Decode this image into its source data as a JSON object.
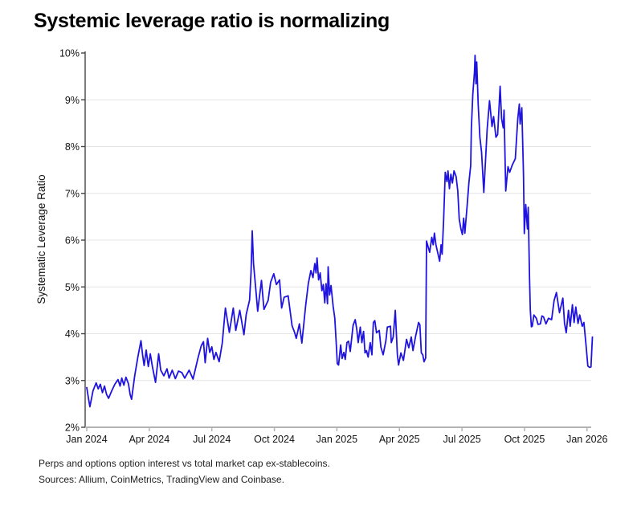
{
  "page": {
    "title": "Systemic leverage ratio is normalizing",
    "footnotes": [
      "Perps and options option interest vs total market cap ex-stablecoins.",
      "Sources: Allium, CoinMetrics, TradingView and Coinbase."
    ]
  },
  "style": {
    "line_color": "#1f13e0",
    "grid_color": "#e4e4e4",
    "y_axis_color": "#444444",
    "x_axis_color": "#b3b3b3",
    "text_color": "#111111"
  },
  "chart_data": {
    "type": "line",
    "title": "Systemic leverage ratio is normalizing",
    "xlabel": "",
    "ylabel": "Systematic Leverage Ratio",
    "legend_position": "none",
    "grid": "horizontal",
    "ylim": [
      2,
      10
    ],
    "xlim_months_from_jan2024": [
      0,
      24.3
    ],
    "y_tick_values": [
      2,
      3,
      4,
      5,
      6,
      7,
      8,
      9,
      10
    ],
    "y_tick_labels": [
      "2%",
      "3%",
      "4%",
      "5%",
      "6%",
      "7%",
      "8%",
      "9%",
      "10%"
    ],
    "y_gridline_values": [
      3,
      4,
      5,
      6,
      7,
      8,
      9
    ],
    "x_tick_months": [
      0,
      3,
      6,
      9,
      12,
      15,
      18,
      21,
      24
    ],
    "x_tick_labels": [
      "Jan 2024",
      "Apr 2024",
      "Jul 2024",
      "Oct 2024",
      "Jan 2025",
      "Apr 2025",
      "Jul 2025",
      "Oct 2025",
      "Jan 2026"
    ],
    "series": [
      {
        "name": "Systematic Leverage Ratio",
        "unit": "%",
        "points_month_value": [
          [
            0,
            2.85
          ],
          [
            0.08,
            2.62
          ],
          [
            0.15,
            2.44
          ],
          [
            0.3,
            2.78
          ],
          [
            0.45,
            2.95
          ],
          [
            0.55,
            2.82
          ],
          [
            0.65,
            2.92
          ],
          [
            0.75,
            2.74
          ],
          [
            0.85,
            2.88
          ],
          [
            0.95,
            2.7
          ],
          [
            1.05,
            2.62
          ],
          [
            1.2,
            2.78
          ],
          [
            1.35,
            2.92
          ],
          [
            1.5,
            3.02
          ],
          [
            1.6,
            2.88
          ],
          [
            1.68,
            3.05
          ],
          [
            1.78,
            2.9
          ],
          [
            1.88,
            3.07
          ],
          [
            2,
            2.93
          ],
          [
            2.08,
            2.7
          ],
          [
            2.15,
            2.6
          ],
          [
            2.3,
            3.1
          ],
          [
            2.45,
            3.5
          ],
          [
            2.6,
            3.85
          ],
          [
            2.68,
            3.55
          ],
          [
            2.75,
            3.32
          ],
          [
            2.85,
            3.65
          ],
          [
            2.95,
            3.3
          ],
          [
            3.05,
            3.57
          ],
          [
            3.15,
            3.3
          ],
          [
            3.3,
            2.96
          ],
          [
            3.45,
            3.57
          ],
          [
            3.55,
            3.22
          ],
          [
            3.7,
            3.1
          ],
          [
            3.85,
            3.25
          ],
          [
            3.95,
            3.05
          ],
          [
            4.1,
            3.22
          ],
          [
            4.25,
            3.04
          ],
          [
            4.4,
            3.2
          ],
          [
            4.56,
            3.17
          ],
          [
            4.7,
            3.05
          ],
          [
            4.91,
            3.22
          ],
          [
            5.1,
            3.03
          ],
          [
            5.33,
            3.47
          ],
          [
            5.49,
            3.74
          ],
          [
            5.6,
            3.83
          ],
          [
            5.68,
            3.38
          ],
          [
            5.8,
            3.9
          ],
          [
            5.9,
            3.6
          ],
          [
            6,
            3.72
          ],
          [
            6.1,
            3.45
          ],
          [
            6.2,
            3.6
          ],
          [
            6.35,
            3.4
          ],
          [
            6.5,
            3.8
          ],
          [
            6.65,
            4.55
          ],
          [
            6.84,
            4.03
          ],
          [
            7.03,
            4.55
          ],
          [
            7.15,
            4.07
          ],
          [
            7.34,
            4.5
          ],
          [
            7.54,
            3.98
          ],
          [
            7.65,
            4.41
          ],
          [
            7.81,
            4.72
          ],
          [
            7.88,
            5.3
          ],
          [
            7.94,
            6.2
          ],
          [
            8,
            5.5
          ],
          [
            8.1,
            5
          ],
          [
            8.2,
            4.48
          ],
          [
            8.38,
            5.14
          ],
          [
            8.5,
            4.52
          ],
          [
            8.7,
            4.71
          ],
          [
            8.82,
            5.1
          ],
          [
            8.97,
            5.28
          ],
          [
            9.1,
            5.05
          ],
          [
            9.25,
            5.15
          ],
          [
            9.35,
            4.55
          ],
          [
            9.47,
            4.78
          ],
          [
            9.66,
            4.81
          ],
          [
            9.85,
            4.17
          ],
          [
            9.97,
            4.03
          ],
          [
            10.05,
            3.9
          ],
          [
            10.2,
            4.21
          ],
          [
            10.32,
            3.8
          ],
          [
            10.5,
            4.6
          ],
          [
            10.63,
            5.07
          ],
          [
            10.75,
            5.35
          ],
          [
            10.85,
            5.2
          ],
          [
            10.94,
            5.5
          ],
          [
            11,
            5.3
          ],
          [
            11.05,
            5.62
          ],
          [
            11.12,
            5.15
          ],
          [
            11.2,
            5.3
          ],
          [
            11.28,
            4.92
          ],
          [
            11.35,
            5.05
          ],
          [
            11.42,
            4.66
          ],
          [
            11.48,
            5.07
          ],
          [
            11.55,
            4.64
          ],
          [
            11.58,
            5.43
          ],
          [
            11.65,
            4.83
          ],
          [
            11.72,
            5.03
          ],
          [
            11.82,
            4.59
          ],
          [
            11.9,
            4.33
          ],
          [
            11.98,
            3.7
          ],
          [
            12.02,
            3.36
          ],
          [
            12.08,
            3.33
          ],
          [
            12.18,
            3.76
          ],
          [
            12.25,
            3.47
          ],
          [
            12.33,
            3.6
          ],
          [
            12.4,
            3.45
          ],
          [
            12.48,
            3.81
          ],
          [
            12.56,
            3.84
          ],
          [
            12.64,
            3.62
          ],
          [
            12.78,
            4.18
          ],
          [
            12.88,
            4.3
          ],
          [
            12.95,
            4.1
          ],
          [
            13.02,
            3.81
          ],
          [
            13.12,
            4.14
          ],
          [
            13.2,
            3.81
          ],
          [
            13.28,
            4.05
          ],
          [
            13.35,
            3.59
          ],
          [
            13.42,
            3.64
          ],
          [
            13.5,
            3.5
          ],
          [
            13.6,
            3.81
          ],
          [
            13.68,
            3.55
          ],
          [
            13.75,
            4.24
          ],
          [
            13.82,
            4.28
          ],
          [
            13.9,
            4.02
          ],
          [
            14.03,
            4.07
          ],
          [
            14.11,
            3.71
          ],
          [
            14.22,
            3.55
          ],
          [
            14.35,
            3.85
          ],
          [
            14.42,
            4.14
          ],
          [
            14.57,
            4.16
          ],
          [
            14.61,
            3.81
          ],
          [
            14.7,
            3.93
          ],
          [
            14.8,
            4.5
          ],
          [
            14.9,
            3.55
          ],
          [
            14.96,
            3.33
          ],
          [
            15.07,
            3.59
          ],
          [
            15.19,
            3.43
          ],
          [
            15.34,
            3.88
          ],
          [
            15.45,
            3.7
          ],
          [
            15.57,
            3.93
          ],
          [
            15.65,
            3.64
          ],
          [
            15.77,
            3.93
          ],
          [
            15.92,
            4.24
          ],
          [
            15.98,
            4.19
          ],
          [
            16.05,
            3.59
          ],
          [
            16.12,
            3.55
          ],
          [
            16.18,
            3.4
          ],
          [
            16.26,
            3.48
          ],
          [
            16.3,
            5.98
          ],
          [
            16.45,
            5.74
          ],
          [
            16.55,
            6.06
          ],
          [
            16.62,
            5.9
          ],
          [
            16.68,
            6.15
          ],
          [
            16.75,
            5.9
          ],
          [
            16.93,
            5.55
          ],
          [
            17,
            5.9
          ],
          [
            17.05,
            5.7
          ],
          [
            17.12,
            6.45
          ],
          [
            17.2,
            7.45
          ],
          [
            17.28,
            7.25
          ],
          [
            17.33,
            7.48
          ],
          [
            17.4,
            7.1
          ],
          [
            17.47,
            7.41
          ],
          [
            17.54,
            7.22
          ],
          [
            17.62,
            7.48
          ],
          [
            17.72,
            7.36
          ],
          [
            17.8,
            7.05
          ],
          [
            17.87,
            6.45
          ],
          [
            17.95,
            6.24
          ],
          [
            18.02,
            6.12
          ],
          [
            18.08,
            6.47
          ],
          [
            18.14,
            6.15
          ],
          [
            18.25,
            6.75
          ],
          [
            18.33,
            7.22
          ],
          [
            18.42,
            7.6
          ],
          [
            18.45,
            8.4
          ],
          [
            18.52,
            9.12
          ],
          [
            18.6,
            9.6
          ],
          [
            18.63,
            9.95
          ],
          [
            18.67,
            9.34
          ],
          [
            18.71,
            9.81
          ],
          [
            18.78,
            8.9
          ],
          [
            18.86,
            8.2
          ],
          [
            18.94,
            7.88
          ],
          [
            19.05,
            7.02
          ],
          [
            19.13,
            7.7
          ],
          [
            19.21,
            8.38
          ],
          [
            19.32,
            8.98
          ],
          [
            19.44,
            8.43
          ],
          [
            19.52,
            8.64
          ],
          [
            19.63,
            8.2
          ],
          [
            19.71,
            8.26
          ],
          [
            19.83,
            9.29
          ],
          [
            19.9,
            8.6
          ],
          [
            19.98,
            8.4
          ],
          [
            20.02,
            8.78
          ],
          [
            20.1,
            7.05
          ],
          [
            20.21,
            7.57
          ],
          [
            20.29,
            7.45
          ],
          [
            20.41,
            7.6
          ],
          [
            20.56,
            7.74
          ],
          [
            20.68,
            8.6
          ],
          [
            20.75,
            8.91
          ],
          [
            20.79,
            8.48
          ],
          [
            20.87,
            8.83
          ],
          [
            20.95,
            7.4
          ],
          [
            20.99,
            6.14
          ],
          [
            21.06,
            6.76
          ],
          [
            21.14,
            6.24
          ],
          [
            21.18,
            6.7
          ],
          [
            21.24,
            5.2
          ],
          [
            21.28,
            4.5
          ],
          [
            21.33,
            4.15
          ],
          [
            21.37,
            4.16
          ],
          [
            21.45,
            4.4
          ],
          [
            21.57,
            4.33
          ],
          [
            21.65,
            4.2
          ],
          [
            21.76,
            4.21
          ],
          [
            21.84,
            4.38
          ],
          [
            21.91,
            4.36
          ],
          [
            22.03,
            4.21
          ],
          [
            22.15,
            4.33
          ],
          [
            22.3,
            4.3
          ],
          [
            22.42,
            4.71
          ],
          [
            22.53,
            4.88
          ],
          [
            22.68,
            4.45
          ],
          [
            22.84,
            4.76
          ],
          [
            22.92,
            4.22
          ],
          [
            23,
            4.02
          ],
          [
            23.11,
            4.5
          ],
          [
            23.19,
            4.16
          ],
          [
            23.3,
            4.62
          ],
          [
            23.38,
            4.24
          ],
          [
            23.46,
            4.57
          ],
          [
            23.57,
            4.22
          ],
          [
            23.65,
            4.4
          ],
          [
            23.77,
            4.16
          ],
          [
            23.85,
            4.24
          ],
          [
            23.96,
            3.71
          ],
          [
            24.04,
            3.31
          ],
          [
            24.12,
            3.28
          ],
          [
            24.19,
            3.29
          ],
          [
            24.26,
            3.93
          ]
        ]
      }
    ]
  }
}
